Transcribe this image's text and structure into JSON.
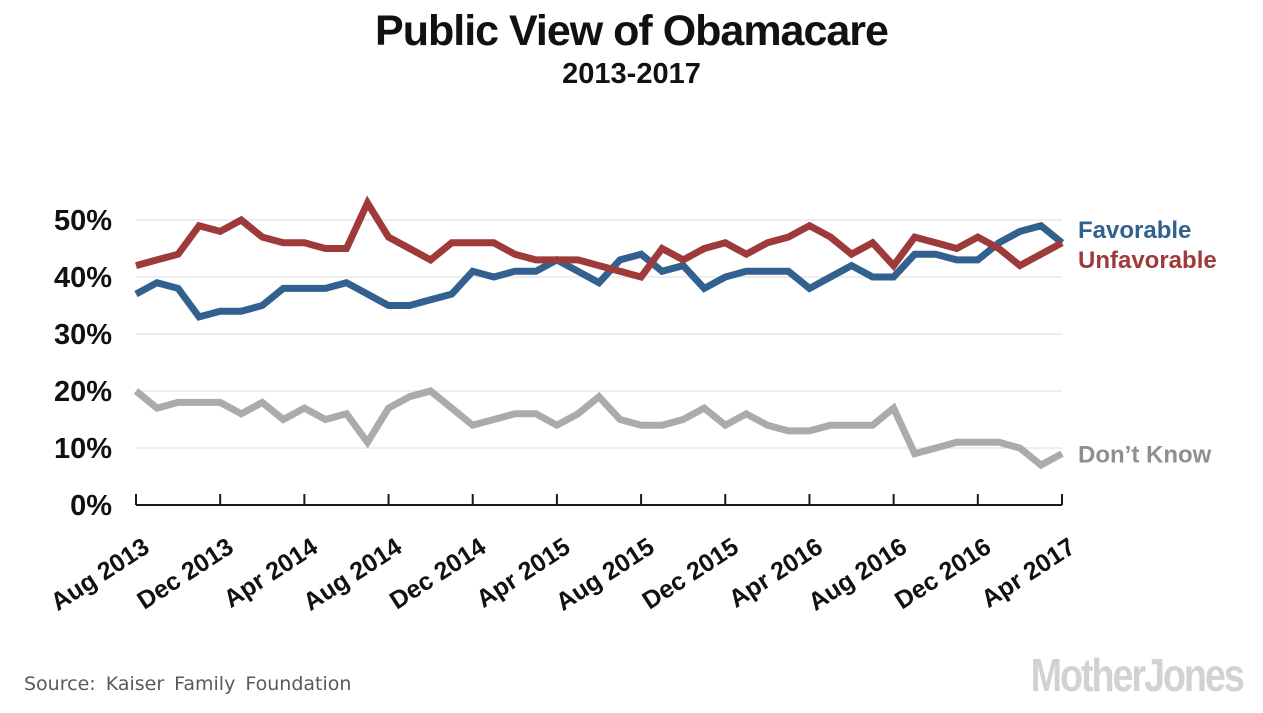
{
  "chart_data": {
    "type": "line",
    "title": "Public View of Obamacare",
    "subtitle": "2013-2017",
    "xlabel": "",
    "ylabel": "",
    "ylim": [
      0,
      55
    ],
    "yticks": [
      0,
      10,
      20,
      30,
      40,
      50
    ],
    "ytick_suffix": "%",
    "grid": true,
    "legend_position": "right-of-lines",
    "x_tick_every": 4,
    "x_tick_labels": [
      "Aug 2013",
      "Dec 2013",
      "Apr 2014",
      "Aug 2014",
      "Dec 2014",
      "Apr 2015",
      "Aug 2015",
      "Dec 2015",
      "Apr 2016",
      "Aug 2016",
      "Dec 2016",
      "Apr 2017"
    ],
    "categories": [
      "Aug 2013",
      "Sep 2013",
      "Oct 2013",
      "Nov 2013",
      "Dec 2013",
      "Jan 2014",
      "Feb 2014",
      "Mar 2014",
      "Apr 2014",
      "May 2014",
      "Jun 2014",
      "Jul 2014",
      "Aug 2014",
      "Sep 2014",
      "Oct 2014",
      "Nov 2014",
      "Dec 2014",
      "Jan 2015",
      "Feb 2015",
      "Mar 2015",
      "Apr 2015",
      "May 2015",
      "Jun 2015",
      "Jul 2015",
      "Aug 2015",
      "Sep 2015",
      "Oct 2015",
      "Nov 2015",
      "Dec 2015",
      "Jan 2016",
      "Feb 2016",
      "Mar 2016",
      "Apr 2016",
      "May 2016",
      "Jun 2016",
      "Jul 2016",
      "Aug 2016",
      "Sep 2016",
      "Oct 2016",
      "Nov 2016",
      "Dec 2016",
      "Jan 2017",
      "Feb 2017",
      "Mar 2017",
      "Apr 2017"
    ],
    "series": [
      {
        "name": "Favorable",
        "color": "#33618F",
        "label_value": 48.4,
        "values": [
          37,
          39,
          38,
          33,
          34,
          34,
          35,
          38,
          38,
          38,
          39,
          37,
          35,
          35,
          36,
          37,
          41,
          40,
          41,
          41,
          43,
          41,
          39,
          43,
          44,
          41,
          42,
          38,
          40,
          41,
          41,
          41,
          38,
          40,
          42,
          40,
          40,
          44,
          44,
          43,
          43,
          46,
          48,
          49,
          46
        ]
      },
      {
        "name": "Unfavorable",
        "color": "#9E3A3A",
        "label_value": 43.2,
        "values": [
          42,
          43,
          44,
          49,
          48,
          50,
          47,
          46,
          46,
          45,
          45,
          53,
          47,
          45,
          43,
          46,
          46,
          46,
          44,
          43,
          43,
          43,
          42,
          41,
          40,
          45,
          43,
          45,
          46,
          44,
          46,
          47,
          49,
          47,
          44,
          46,
          42,
          47,
          46,
          45,
          47,
          45,
          42,
          44,
          46
        ]
      },
      {
        "name": "Don’t Know",
        "color": "#ABABAB",
        "label_value": 9,
        "values": [
          20,
          17,
          18,
          18,
          18,
          16,
          18,
          15,
          17,
          15,
          16,
          11,
          17,
          19,
          20,
          17,
          14,
          15,
          16,
          16,
          14,
          16,
          19,
          15,
          14,
          14,
          15,
          17,
          14,
          16,
          14,
          13,
          13,
          14,
          14,
          14,
          17,
          9,
          10,
          11,
          11,
          11,
          10,
          7,
          9
        ]
      }
    ]
  },
  "source": "Source: Kaiser Family Foundation",
  "logo": "MotherJones",
  "colors": {
    "axis": "#1A1A1A",
    "grid": "#E7E7E7",
    "tick_label": "#111111",
    "legend_dontknow_text": "#8F8F8F",
    "source_text": "#5A5A5A",
    "logo_gray": "#D2D2D2"
  }
}
